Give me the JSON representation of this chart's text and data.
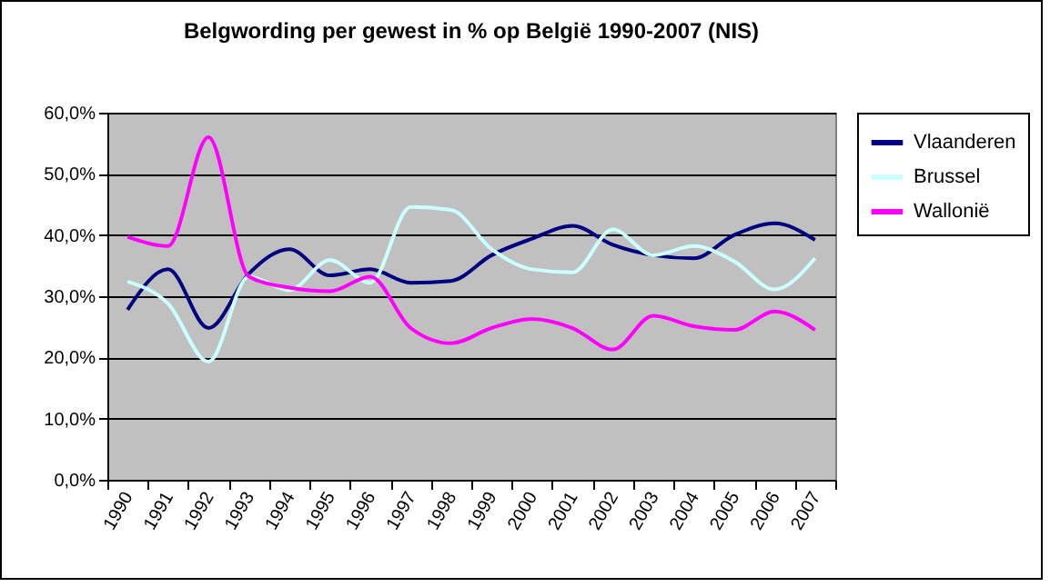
{
  "chart_data": {
    "type": "line",
    "title": "Belgwording per gewest in %  op België 1990-2007 (NIS)",
    "categories": [
      "1990",
      "1991",
      "1992",
      "1993",
      "1994",
      "1995",
      "1996",
      "1997",
      "1998",
      "1999",
      "2000",
      "2001",
      "2002",
      "2003",
      "2004",
      "2005",
      "2006",
      "2007"
    ],
    "series": [
      {
        "name": "Vlaanderen",
        "color": "#000080",
        "values": [
          27.8,
          34.4,
          24.8,
          33.7,
          37.7,
          33.4,
          34.4,
          32.2,
          32.5,
          36.7,
          39.4,
          41.5,
          38.4,
          36.7,
          36.2,
          40.0,
          41.9,
          39.2
        ]
      },
      {
        "name": "Brussel",
        "color": "#ccffff",
        "values": [
          32.4,
          28.8,
          19.3,
          33.2,
          31.0,
          35.9,
          32.2,
          44.6,
          44.1,
          37.7,
          34.4,
          33.9,
          40.9,
          36.7,
          38.2,
          35.7,
          31.1,
          36.2
        ]
      },
      {
        "name": "Wallonië",
        "color": "#ff00ff",
        "values": [
          39.7,
          38.2,
          56.0,
          33.2,
          31.4,
          30.8,
          33.2,
          24.8,
          22.3,
          24.8,
          26.3,
          24.8,
          21.3,
          26.8,
          25.1,
          24.5,
          27.5,
          24.5
        ]
      }
    ],
    "ylim": [
      0,
      60
    ],
    "yticks": [
      {
        "value": 0,
        "label": "0,0%"
      },
      {
        "value": 10,
        "label": "10,0%"
      },
      {
        "value": 20,
        "label": "20,0%"
      },
      {
        "value": 30,
        "label": "30,0%"
      },
      {
        "value": 40,
        "label": "40,0%"
      },
      {
        "value": 50,
        "label": "50,0%"
      },
      {
        "value": 60,
        "label": "60,0%"
      }
    ],
    "grid": "y",
    "legend": "right",
    "line_style": "solid"
  }
}
